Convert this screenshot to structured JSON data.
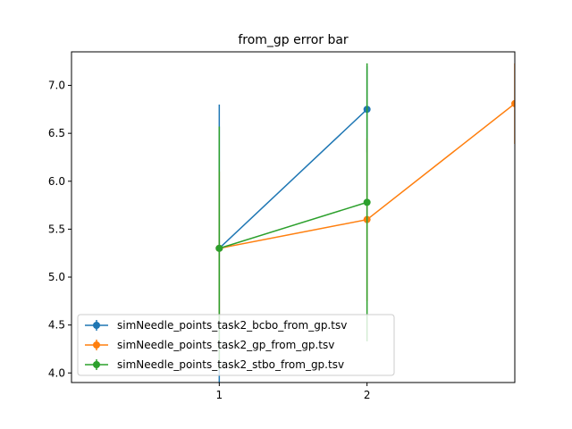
{
  "chart_data": {
    "type": "line",
    "title": "from_gp error bar",
    "xlabel": "",
    "ylabel": "",
    "xlim": [
      0,
      3
    ],
    "ylim": [
      3.9,
      7.35
    ],
    "x_ticks": [
      1,
      2
    ],
    "y_ticks": [
      4.0,
      4.5,
      5.0,
      5.5,
      6.0,
      6.5,
      7.0
    ],
    "y_tick_labels": [
      "4.0",
      "4.5",
      "5.0",
      "5.5",
      "6.0",
      "6.5",
      "7.0"
    ],
    "grid": false,
    "legend_position": "lower-left",
    "series": [
      {
        "name": "simNeedle_points_task2_bcbo_from_gp.tsv",
        "color": "#1f77b4",
        "x": [
          1,
          2
        ],
        "y": [
          5.3,
          6.75
        ],
        "yerr": [
          1.5,
          0.45
        ]
      },
      {
        "name": "simNeedle_points_task2_gp_from_gp.tsv",
        "color": "#ff7f0e",
        "x": [
          1,
          2,
          3
        ],
        "y": [
          5.3,
          5.6,
          6.81
        ],
        "yerr": [
          0.8,
          0.85,
          0.42
        ]
      },
      {
        "name": "simNeedle_points_task2_stbo_from_gp.tsv",
        "color": "#2ca02c",
        "x": [
          1,
          2
        ],
        "y": [
          5.3,
          5.78
        ],
        "yerr": [
          1.27,
          1.45
        ]
      }
    ]
  }
}
